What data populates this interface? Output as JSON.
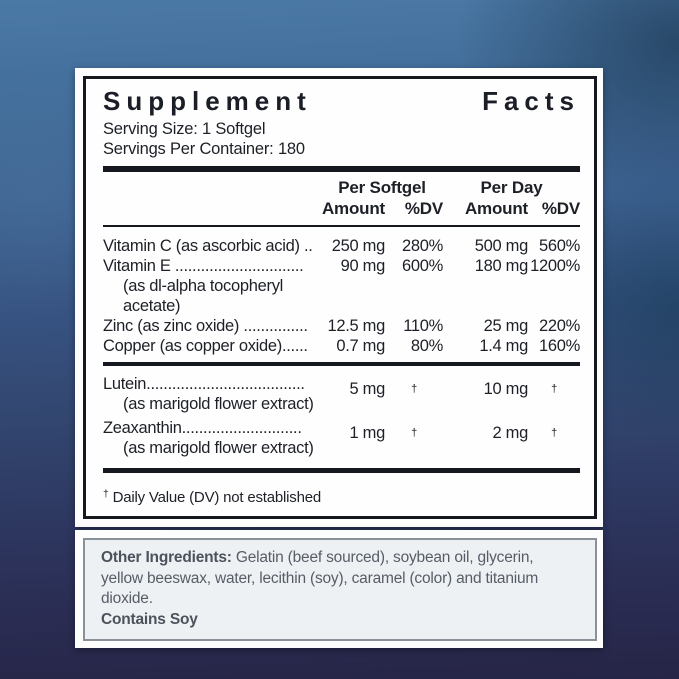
{
  "label": {
    "title": "Supplement Facts",
    "serving_size": "Serving Size: 1 Softgel",
    "servings_per_container": "Servings Per Container: 180",
    "columns": {
      "group1": "Per Softgel",
      "group2": "Per Day",
      "amount": "Amount",
      "dv": "%DV"
    },
    "rows": [
      {
        "name": "Vitamin C (as ascorbic acid) ..",
        "amount_per_softgel": "250 mg",
        "dv_per_softgel": "280%",
        "amount_per_day": "500 mg",
        "dv_per_day": "560%"
      },
      {
        "name": "Vitamin E ..............................",
        "sub1": "(as dl-alpha tocopheryl",
        "sub2": "acetate)",
        "amount_per_softgel": "90 mg",
        "dv_per_softgel": "600%",
        "amount_per_day": "180 mg",
        "dv_per_day": "1200%"
      },
      {
        "name": "Zinc (as zinc oxide) ...............",
        "amount_per_softgel": "12.5 mg",
        "dv_per_softgel": "110%",
        "amount_per_day": "25 mg",
        "dv_per_day": "220%"
      },
      {
        "name": "Copper (as copper oxide)......",
        "amount_per_softgel": "0.7 mg",
        "dv_per_softgel": "80%",
        "amount_per_day": "1.4 mg",
        "dv_per_day": "160%"
      }
    ],
    "rows2": [
      {
        "name": "Lutein.....................................",
        "sub1": "(as marigold flower extract)",
        "amount_per_softgel": "5 mg",
        "dv_per_softgel": "†",
        "amount_per_day": "10 mg",
        "dv_per_day": "†"
      },
      {
        "name": "Zeaxanthin............................",
        "sub1": "(as marigold flower extract)",
        "amount_per_softgel": "1 mg",
        "dv_per_softgel": "†",
        "amount_per_day": "2 mg",
        "dv_per_day": "†"
      }
    ],
    "footnote": {
      "symbol": "†",
      "text": "Daily Value (DV) not established"
    }
  },
  "other_ingredients": {
    "label": "Other Ingredients:",
    "text": "Gelatin (beef sourced), soybean oil, glycerin, yellow beeswax, water, lecithin (soy), caramel (color) and titanium dioxide.",
    "allergen": "Contains Soy"
  },
  "colors": {
    "panel": "#fdfdfd",
    "rule": "#16181f",
    "ingredients_bg": "#eef1f4",
    "ingredients_border": "#8b9199",
    "background_top": "#4b79a6",
    "background_bottom": "#262547"
  }
}
